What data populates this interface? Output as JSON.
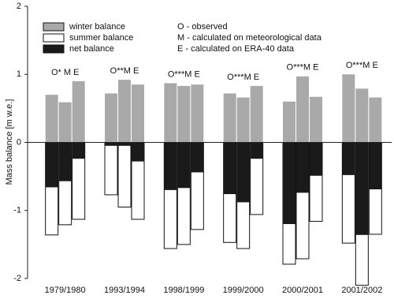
{
  "chart_data": {
    "type": "grouped-stacked-bar",
    "y_label": "Mass balance [m w.e.]",
    "categories": [
      "1979/1980",
      "1993/1994",
      "1998/1999",
      "1999/2000",
      "2000/2001",
      "2001/2002"
    ],
    "group_labels": [
      "O* M  E",
      "O**M  E",
      "O***M  E",
      "O***M  E",
      "O***M  E",
      "O***M  E"
    ],
    "notes": [
      "O - observed",
      "M - calculated on meteorological data",
      "E - calculated on ERA-40 data"
    ],
    "series": [
      {
        "name": "winter balance",
        "color": "#a9a9a9",
        "values": [
          [
            0.7,
            0.59,
            0.9
          ],
          [
            0.72,
            0.92,
            0.85
          ],
          [
            0.87,
            0.83,
            0.85
          ],
          [
            0.72,
            0.66,
            0.83
          ],
          [
            0.6,
            0.97,
            0.67
          ],
          [
            1.0,
            0.79,
            0.66
          ]
        ]
      },
      {
        "name": "summer balance",
        "color": "#ffffff",
        "values": [
          [
            -1.36,
            -1.21,
            -1.13
          ],
          [
            -0.77,
            -0.95,
            -1.13
          ],
          [
            -1.56,
            -1.5,
            -1.28
          ],
          [
            -1.47,
            -1.56,
            -1.06
          ],
          [
            -1.79,
            -1.71,
            -1.16
          ],
          [
            -1.48,
            -2.1,
            -1.35
          ]
        ]
      },
      {
        "name": "net balance",
        "color": "#1a1a1a",
        "values": [
          [
            -0.66,
            -0.57,
            -0.24
          ],
          [
            -0.05,
            -0.05,
            -0.28
          ],
          [
            -0.7,
            -0.67,
            -0.44
          ],
          [
            -0.76,
            -0.88,
            -0.24
          ],
          [
            -1.2,
            -0.74,
            -0.49
          ],
          [
            -0.48,
            -1.36,
            -0.69
          ]
        ]
      }
    ],
    "ylim": [
      -2,
      2
    ],
    "yticks": [
      -2,
      -1,
      0,
      1,
      2
    ]
  }
}
